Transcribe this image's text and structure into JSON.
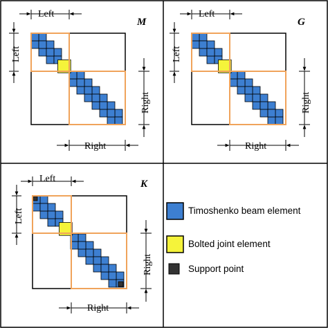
{
  "panels": [
    {
      "id": "M",
      "name": "M",
      "left_label": "Left",
      "right_label": "Right",
      "blocks": 12,
      "joint_index": 4,
      "support_points": false
    },
    {
      "id": "G",
      "name": "G",
      "left_label": "Left",
      "right_label": "Right",
      "blocks": 12,
      "joint_index": 4,
      "support_points": false
    },
    {
      "id": "K",
      "name": "K",
      "left_label": "Left",
      "right_label": "Right",
      "blocks": 12,
      "joint_index": 4,
      "support_points": true
    }
  ],
  "legend": [
    {
      "id": "beam",
      "label": "Timoshenko beam element",
      "color": "#3d7fd1"
    },
    {
      "id": "joint",
      "label": "Bolted joint element",
      "color": "#f5f33a"
    },
    {
      "id": "support",
      "label": "Support point",
      "color": "#333333"
    }
  ],
  "colors": {
    "beam": "#3d7fd1",
    "joint": "#f5f33a",
    "support": "#333333",
    "submatrix": "#f0a35a",
    "frame": "#000000"
  }
}
